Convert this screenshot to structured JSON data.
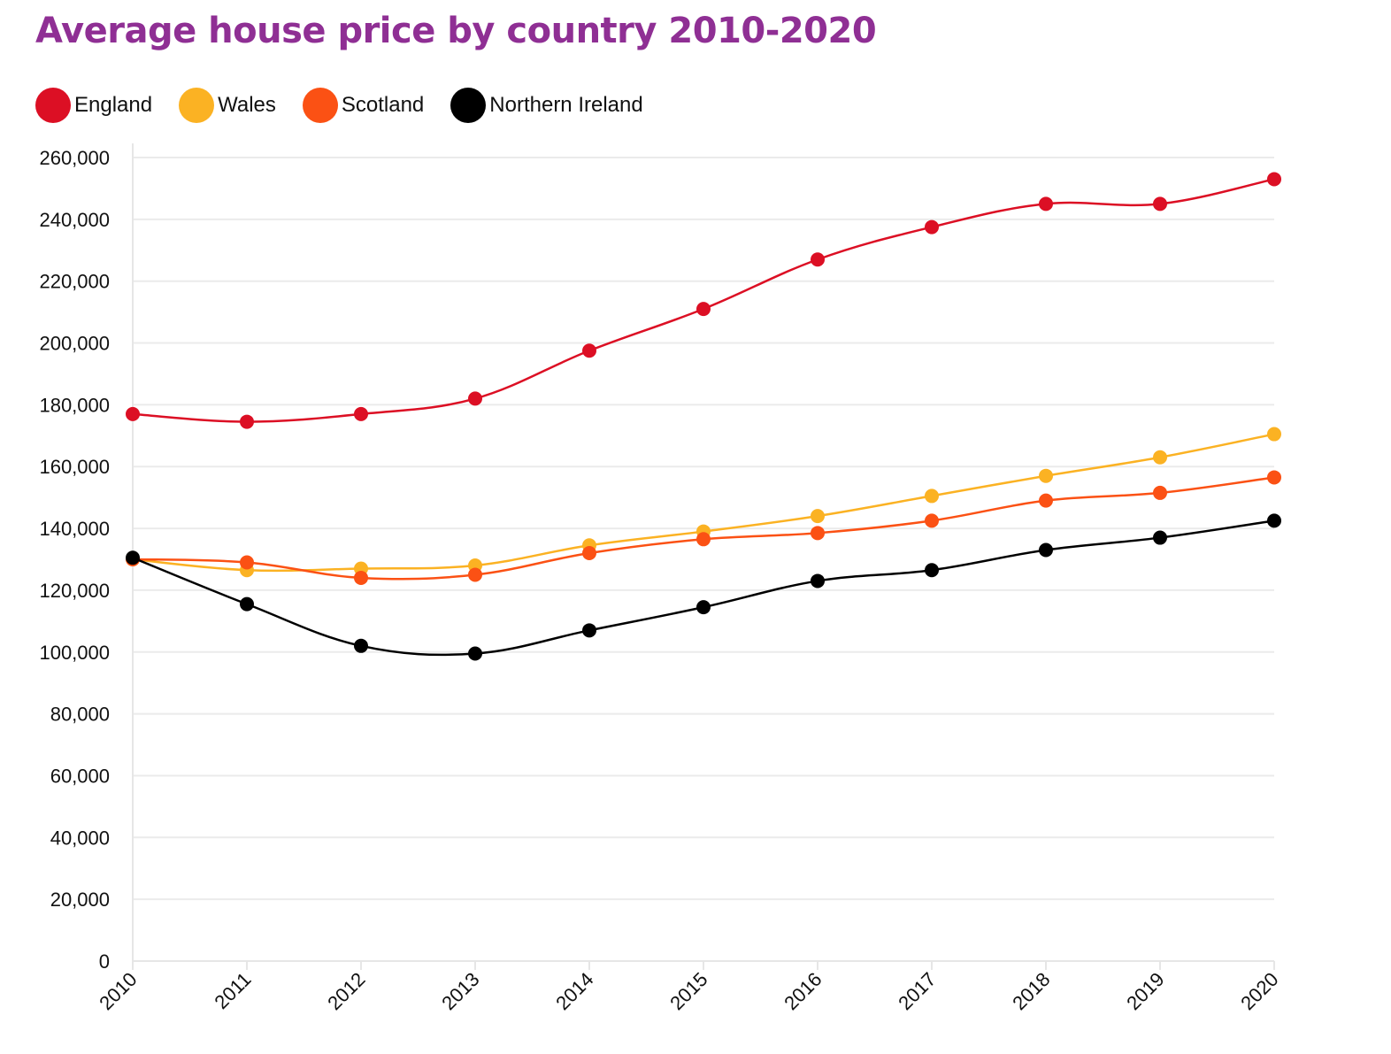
{
  "title": "Average house price by country 2010-2020",
  "chart_data": {
    "type": "line",
    "title": "Average house price by country 2010-2020",
    "xlabel": "",
    "ylabel": "",
    "x": [
      "2010",
      "2011",
      "2012",
      "2013",
      "2014",
      "2015",
      "2016",
      "2017",
      "2018",
      "2019",
      "2020"
    ],
    "ylim": [
      0,
      260000
    ],
    "yticks": [
      0,
      20000,
      40000,
      60000,
      80000,
      100000,
      120000,
      140000,
      160000,
      180000,
      200000,
      220000,
      240000,
      260000
    ],
    "ytick_labels": [
      "0",
      "20,000",
      "40,000",
      "60,000",
      "80,000",
      "100,000",
      "120,000",
      "140,000",
      "160,000",
      "180,000",
      "200,000",
      "220,000",
      "240,000",
      "260,000"
    ],
    "grid": "horizontal",
    "legend_position": "top-left",
    "series": [
      {
        "name": "England",
        "color": "#dc0f24",
        "values": [
          177000,
          174500,
          177000,
          182000,
          197500,
          211000,
          227000,
          237500,
          245000,
          245000,
          253000
        ]
      },
      {
        "name": "Wales",
        "color": "#fbb223",
        "values": [
          130000,
          126500,
          127000,
          128000,
          134500,
          139000,
          144000,
          150500,
          157000,
          163000,
          170500
        ]
      },
      {
        "name": "Scotland",
        "color": "#fb5114",
        "values": [
          130000,
          129000,
          124000,
          125000,
          132000,
          136500,
          138500,
          142500,
          149000,
          151500,
          156500
        ]
      },
      {
        "name": "Northern Ireland",
        "color": "#000000",
        "values": [
          130500,
          115500,
          102000,
          99500,
          107000,
          114500,
          123000,
          126500,
          133000,
          137000,
          142500
        ]
      }
    ]
  }
}
